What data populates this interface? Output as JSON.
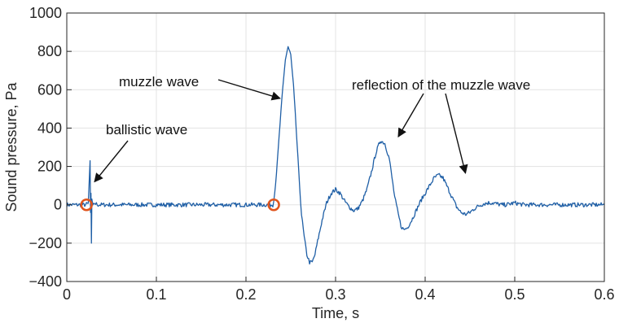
{
  "chart_data": {
    "type": "line",
    "xlabel": "Time, s",
    "ylabel": "Sound pressure, Pa",
    "xlim": [
      0,
      0.6
    ],
    "ylim": [
      -400,
      1000
    ],
    "x_ticks": [
      0,
      0.1,
      0.2,
      0.3,
      0.4,
      0.5,
      0.6
    ],
    "x_tick_labels": [
      "0",
      "0.1",
      "0.2",
      "0.3",
      "0.4",
      "0.5",
      "0.6"
    ],
    "y_ticks": [
      -400,
      -200,
      0,
      200,
      400,
      600,
      800,
      1000
    ],
    "y_tick_labels": [
      "−400",
      "−200",
      "0",
      "200",
      "400",
      "600",
      "800",
      "1000"
    ],
    "grid": true,
    "line_color": "#1f5fa6",
    "marker_color": "#e0541c",
    "series": [
      {
        "x": [
          0,
          0.02,
          0.024,
          0.026,
          0.0265,
          0.027,
          0.0275,
          0.028,
          0.029,
          0.031,
          0.035,
          0.1,
          0.2,
          0.23,
          0.232,
          0.235,
          0.238,
          0.241,
          0.244,
          0.247,
          0.25,
          0.253,
          0.256,
          0.259,
          0.262,
          0.265,
          0.268,
          0.271,
          0.274,
          0.277,
          0.28,
          0.285,
          0.29,
          0.295,
          0.3,
          0.305,
          0.31,
          0.315,
          0.32,
          0.325,
          0.33,
          0.335,
          0.34,
          0.345,
          0.35,
          0.355,
          0.36,
          0.363,
          0.366,
          0.37,
          0.373,
          0.376,
          0.38,
          0.385,
          0.39,
          0.395,
          0.4,
          0.405,
          0.41,
          0.415,
          0.42,
          0.425,
          0.43,
          0.435,
          0.44,
          0.445,
          0.45,
          0.455,
          0.46,
          0.465,
          0.47,
          0.475,
          0.48,
          0.485,
          0.49,
          0.495,
          0.5,
          0.505,
          0.51,
          0.515,
          0.52,
          0.53,
          0.55,
          0.6
        ],
        "y": [
          0,
          0,
          5,
          230,
          -40,
          60,
          -200,
          30,
          -10,
          8,
          0,
          0,
          0,
          0,
          60,
          220,
          420,
          600,
          760,
          825,
          780,
          620,
          400,
          160,
          -50,
          -170,
          -260,
          -300,
          -300,
          -260,
          -190,
          -80,
          10,
          60,
          80,
          60,
          20,
          -10,
          -30,
          -20,
          20,
          80,
          170,
          270,
          335,
          320,
          240,
          140,
          40,
          -50,
          -110,
          -130,
          -120,
          -80,
          -30,
          20,
          60,
          100,
          140,
          155,
          140,
          90,
          40,
          -10,
          -40,
          -50,
          -40,
          -20,
          -5,
          5,
          10,
          10,
          5,
          0,
          0,
          5,
          10,
          5,
          0,
          0,
          0,
          0,
          0,
          0
        ]
      }
    ],
    "markers": [
      {
        "x": 0.022,
        "y": 0
      },
      {
        "x": 0.231,
        "y": 0
      }
    ],
    "annotations": [
      {
        "text": "ballistic wave",
        "arrow_to": [
          0.031,
          120
        ]
      },
      {
        "text": "muzzle wave",
        "arrow_to": [
          0.238,
          555
        ]
      },
      {
        "text": "reflection of the muzzle wave",
        "arrow_to": [
          0.37,
          355
        ]
      },
      {
        "text": "reflection of the muzzle wave",
        "arrow_to": [
          0.445,
          165
        ],
        "shares_label": true
      }
    ]
  }
}
